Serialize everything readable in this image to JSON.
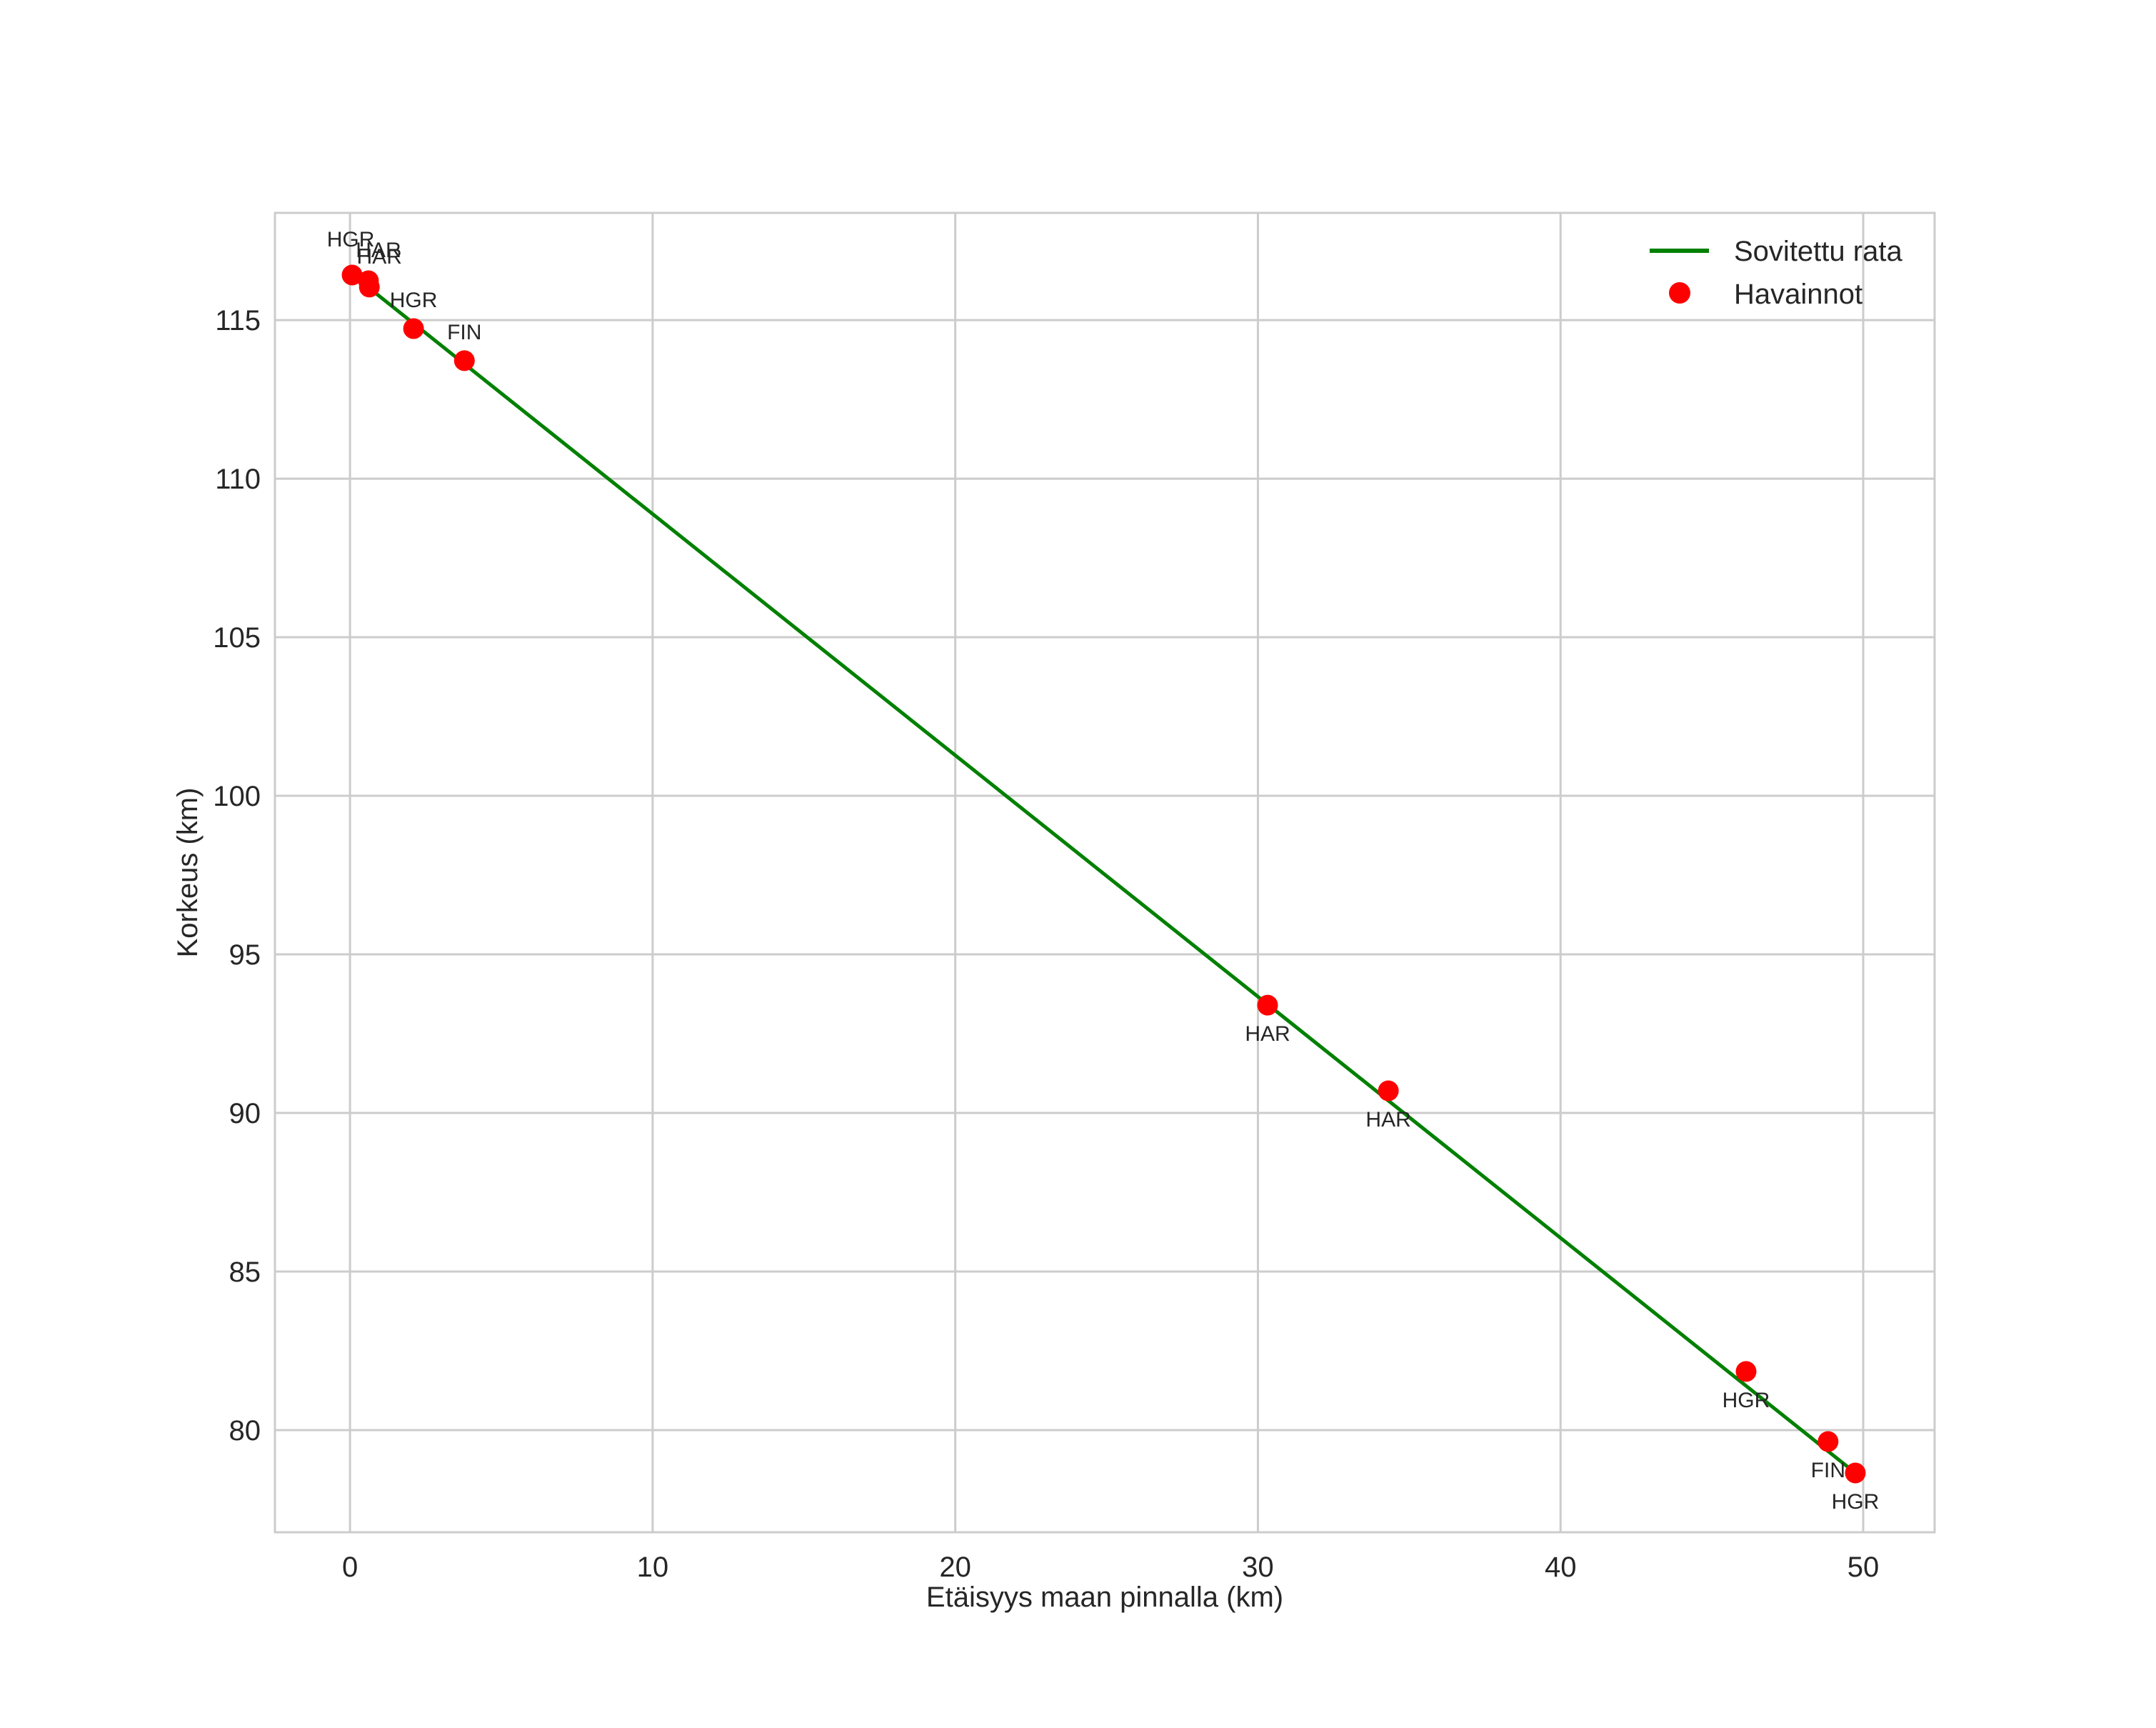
{
  "chart_data": {
    "type": "scatter",
    "title": "",
    "xlabel": "Etäisyys maan pinnalla (km)",
    "ylabel": "Korkeus (km)",
    "xlim": [
      -2.48,
      52.36
    ],
    "ylim": [
      76.78,
      118.38
    ],
    "xticks": [
      0,
      10,
      20,
      30,
      40,
      50
    ],
    "yticks": [
      80,
      85,
      90,
      95,
      100,
      105,
      110,
      115
    ],
    "grid": true,
    "legend_position": "upper right",
    "colors": {
      "fit_line": "#008000",
      "observations": "#ff0000",
      "grid": "#cccccc",
      "text": "#262626"
    },
    "series": [
      {
        "name": "Sovitettu rata",
        "kind": "line",
        "x": [
          0.07,
          49.74
        ],
        "y": [
          116.44,
          78.65
        ]
      },
      {
        "name": "Havainnot",
        "kind": "scatter",
        "points": [
          {
            "x": 0.07,
            "y": 116.42,
            "label": "HGR",
            "label_pos": "above"
          },
          {
            "x": 0.61,
            "y": 116.24,
            "label": "HAR",
            "label_pos": "above"
          },
          {
            "x": 0.64,
            "y": 116.04,
            "label": "HAR",
            "label_pos": "above"
          },
          {
            "x": 2.1,
            "y": 114.73,
            "label": "HGR",
            "label_pos": "above"
          },
          {
            "x": 3.78,
            "y": 113.72,
            "label": "FIN",
            "label_pos": "above"
          },
          {
            "x": 30.32,
            "y": 93.4,
            "label": "HAR",
            "label_pos": "below"
          },
          {
            "x": 34.31,
            "y": 90.7,
            "label": "HAR",
            "label_pos": "below"
          },
          {
            "x": 46.13,
            "y": 81.85,
            "label": "HGR",
            "label_pos": "below"
          },
          {
            "x": 48.84,
            "y": 79.64,
            "label": "FIN",
            "label_pos": "below"
          },
          {
            "x": 49.74,
            "y": 78.65,
            "label": "HGR",
            "label_pos": "below"
          }
        ]
      }
    ],
    "legend": [
      {
        "label": "Sovitettu rata",
        "marker": "line"
      },
      {
        "label": "Havainnot",
        "marker": "dot"
      }
    ]
  }
}
